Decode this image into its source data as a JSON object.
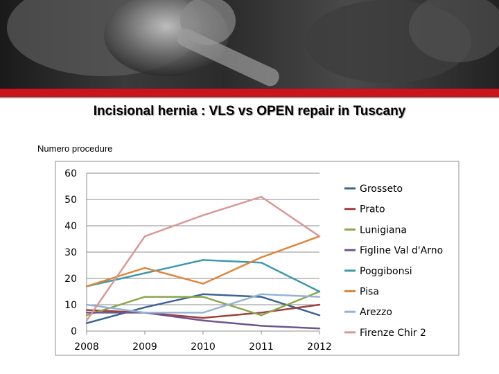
{
  "slide": {
    "title": "Incisional hernia : VLS vs OPEN repair in Tuscany"
  },
  "colors": {
    "banner_bar": "#c8141a",
    "grid": "#8c8c8c"
  },
  "chart_data": {
    "type": "line",
    "title": "",
    "xlabel": "",
    "ylabel": "Numero procedure",
    "x": [
      "2008",
      "2009",
      "2010",
      "2011",
      "2012"
    ],
    "ylim": [
      0,
      60
    ],
    "yticks": [
      0,
      10,
      20,
      30,
      40,
      50,
      60
    ],
    "grid": true,
    "legend_position": "right",
    "series": [
      {
        "name": "Grosseto",
        "color": "#3a6492",
        "values": [
          3,
          9,
          14,
          13,
          6
        ]
      },
      {
        "name": "Prato",
        "color": "#a0403e",
        "values": [
          8,
          7,
          5,
          7,
          10
        ]
      },
      {
        "name": "Lunigiana",
        "color": "#8aa84a",
        "values": [
          6,
          13,
          13,
          6,
          15
        ]
      },
      {
        "name": "Figline Val d'Arno",
        "color": "#6e548d",
        "values": [
          7,
          7,
          4,
          2,
          1
        ]
      },
      {
        "name": "Poggibonsi",
        "color": "#3c9aac",
        "values": [
          17,
          22,
          27,
          26,
          15
        ]
      },
      {
        "name": "Pisa",
        "color": "#e0853a",
        "values": [
          17,
          24,
          18,
          28,
          36
        ]
      },
      {
        "name": "Arezzo",
        "color": "#95b3d7",
        "values": [
          10,
          7,
          7,
          14,
          13
        ]
      },
      {
        "name": "Firenze Chir 2",
        "color": "#d99795",
        "values": [
          4,
          36,
          44,
          51,
          36
        ]
      }
    ]
  }
}
